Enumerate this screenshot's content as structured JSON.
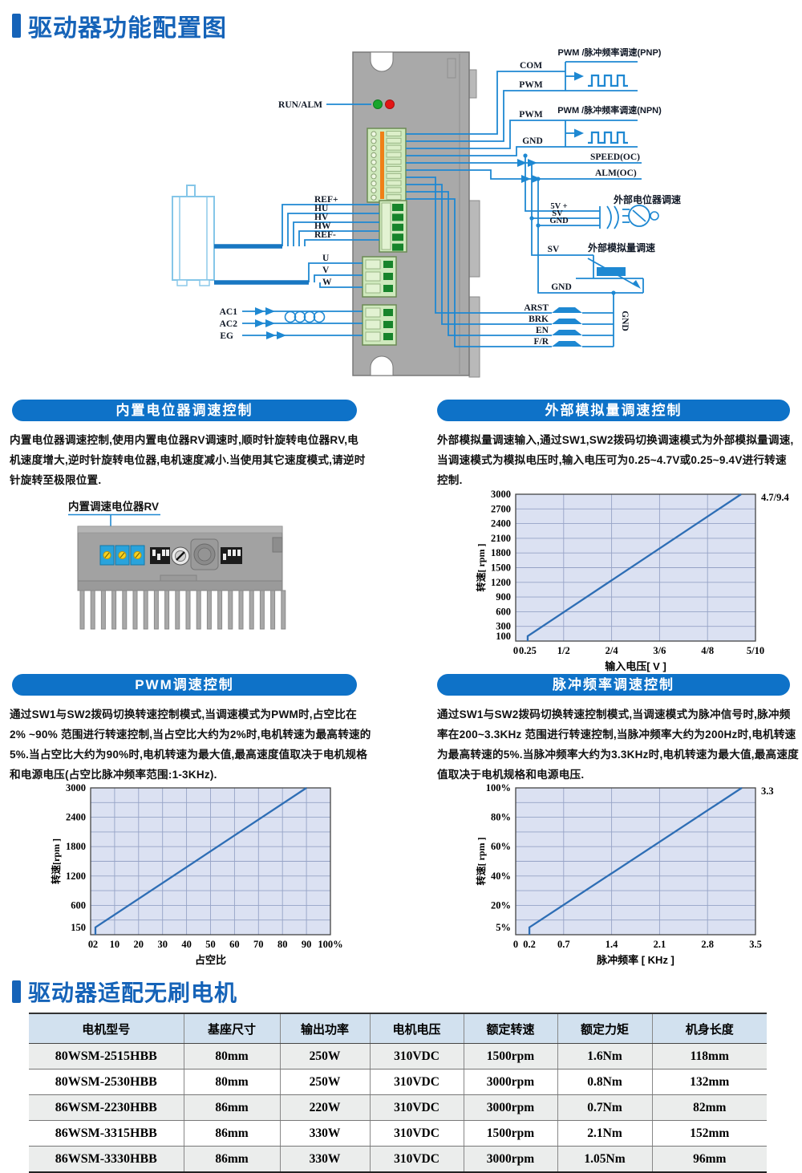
{
  "page": {
    "title1": "驱动器功能配置图",
    "title2": "驱动器适配无刷电机"
  },
  "colors": {
    "accent_blue": "#1563b8",
    "header_bar_blue": "#0e72c8",
    "wire_blue": "#1e88d2",
    "chart_line_blue": "#2e6eb5",
    "chart_plot_bg": "#dbe1f2",
    "table_header_bg": "#d2e1ef",
    "led_green": "#18a62c",
    "led_red": "#e31515"
  },
  "diagram": {
    "labels": {
      "run_alm": "RUN/ALM",
      "pnp_title": "PWM /脉冲频率调速(PNP)",
      "com": "COM",
      "pwm_pnp": "PWM",
      "npn_title": "PWM /脉冲频率调速(NPN)",
      "pwm_npn": "PWM",
      "gnd_npn": "GND",
      "speed_oc": "SPEED(OC)",
      "alm_oc": "ALM(OC)",
      "ext_pot_title": "外部电位器调速",
      "v5p": "5V +",
      "sv_pot": "SV",
      "gnd_pot": "GND",
      "sv_analog": "SV",
      "ext_analog_title": "外部模拟量调速",
      "gnd_analog": "GND",
      "arst": "ARST",
      "brk": "BRK",
      "en": "EN",
      "fr": "F/R",
      "gnd_rail": "GND",
      "ref_plus": "REF+",
      "hu": "HU",
      "hv": "HV",
      "hw": "HW",
      "ref_minus": "REF-",
      "u": "U",
      "v": "V",
      "w": "W",
      "ac1": "AC1",
      "ac2": "AC2",
      "eg": "EG"
    }
  },
  "device_view": {
    "label": "内置调速电位器RV"
  },
  "sections": [
    {
      "header": "内置电位器调速控制",
      "body": "内置电位器调速控制,使用内置电位器RV调速时,顺时针旋转电位器RV,电机速度增大,逆时针旋转电位器,电机速度减小.当使用其它速度模式,请逆时针旋转至极限位置."
    },
    {
      "header": "外部模拟量调速控制",
      "body": "外部模拟量调速输入,通过SW1,SW2拨码切换调速模式为外部模拟量调速,当调速模式为模拟电压时,输入电压可为0.25~4.7V或0.25~9.4V进行转速控制."
    },
    {
      "header": "PWM调速控制",
      "body": "通过SW1与SW2拨码切换转速控制模式,当调速模式为PWM时,占空比在2% ~90% 范围进行转速控制,当占空比大约为2%时,电机转速为最高转速的5%.当占空比大约为90%时,电机转速为最大值,最高速度值取决于电机规格和电源电压(占空比脉冲频率范围:1-3KHz)."
    },
    {
      "header": "脉冲频率调速控制",
      "body": "通过SW1与SW2拨码切换转速控制模式,当调速模式为脉冲信号时,脉冲频率在200~3.3KHz 范围进行转速控制,当脉冲频率大约为200Hz时,电机转速为最高转速的5%.当脉冲频率大约为3.3KHz时,电机转速为最大值,最高速度值取决于电机规格和电源电压."
    }
  ],
  "chart_data": [
    {
      "name": "analog-voltage-speed-curve",
      "type": "line",
      "xlabel": "输入电压[ V ]",
      "ylabel": "转速[ rpm ]",
      "xlim": [
        0,
        5
      ],
      "ylim": [
        0,
        3000
      ],
      "x_tick_pos": [
        0,
        0.25,
        1,
        2,
        3,
        4,
        5
      ],
      "x_tick_labels": [
        "0",
        "0.25",
        "1/2",
        "2/4",
        "3/6",
        "4/8",
        "5/10"
      ],
      "grid_x": [
        1,
        2,
        3,
        4
      ],
      "y_tick_pos": [
        100,
        300,
        600,
        900,
        1200,
        1500,
        1800,
        2100,
        2400,
        2700,
        3000
      ],
      "y_tick_labels": [
        "100",
        "300",
        "600",
        "900",
        "1200",
        "1500",
        "1800",
        "2100",
        "2400",
        "2700",
        "3000"
      ],
      "grid_y_step": 300,
      "annotation": "4.7/9.4",
      "series": [
        {
          "name": "转速",
          "points": [
            [
              0.25,
              0
            ],
            [
              0.25,
              100
            ],
            [
              4.7,
              3000
            ]
          ]
        }
      ]
    },
    {
      "name": "pwm-duty-speed-curve",
      "type": "line",
      "xlabel": "占空比",
      "ylabel": "转速[rpm ]",
      "xlim": [
        0,
        100
      ],
      "ylim": [
        0,
        3000
      ],
      "x_tick_pos": [
        0,
        2,
        10,
        20,
        30,
        40,
        50,
        60,
        70,
        80,
        90,
        100
      ],
      "x_tick_labels": [
        "0",
        "2",
        "10",
        "20",
        "30",
        "40",
        "50",
        "60",
        "70",
        "80",
        "90",
        "100%"
      ],
      "grid_x": [
        10,
        20,
        30,
        40,
        50,
        60,
        70,
        80,
        90
      ],
      "y_tick_pos": [
        150,
        600,
        1200,
        1800,
        2400,
        3000
      ],
      "y_tick_labels": [
        "150",
        "600",
        "1200",
        "1800",
        "2400",
        "3000"
      ],
      "grid_y_step": 300,
      "annotation": "",
      "series": [
        {
          "name": "转速",
          "points": [
            [
              2,
              0
            ],
            [
              2,
              150
            ],
            [
              90,
              3000
            ]
          ]
        }
      ]
    },
    {
      "name": "pulse-frequency-speed-curve",
      "type": "line",
      "xlabel": "脉冲频率 [ KHz ]",
      "ylabel": "转速[ rpm ]",
      "xlim": [
        0,
        3.5
      ],
      "ylim": [
        0,
        100
      ],
      "x_tick_pos": [
        0,
        0.2,
        0.7,
        1.4,
        2.1,
        2.8,
        3.5
      ],
      "x_tick_labels": [
        "0",
        "0.2",
        "0.7",
        "1.4",
        "2.1",
        "2.8",
        "3.5"
      ],
      "grid_x": [
        0.7,
        1.4,
        2.1,
        2.8
      ],
      "y_tick_pos": [
        5,
        20,
        40,
        60,
        80,
        100
      ],
      "y_tick_labels": [
        "5%",
        "20%",
        "40%",
        "60%",
        "80%",
        "100%"
      ],
      "grid_y_step": 10,
      "annotation": "3.3",
      "series": [
        {
          "name": "转速",
          "points": [
            [
              0.2,
              0
            ],
            [
              0.2,
              5
            ],
            [
              3.3,
              100
            ]
          ]
        }
      ]
    }
  ],
  "table": {
    "headers": [
      "电机型号",
      "基座尺寸",
      "输出功率",
      "电机电压",
      "额定转速",
      "额定力矩",
      "机身长度"
    ],
    "rows": [
      [
        "80WSM-2515HBB",
        "80mm",
        "250W",
        "310VDC",
        "1500rpm",
        "1.6Nm",
        "118mm"
      ],
      [
        "80WSM-2530HBB",
        "80mm",
        "250W",
        "310VDC",
        "3000rpm",
        "0.8Nm",
        "132mm"
      ],
      [
        "86WSM-2230HBB",
        "86mm",
        "220W",
        "310VDC",
        "3000rpm",
        "0.7Nm",
        "82mm"
      ],
      [
        "86WSM-3315HBB",
        "86mm",
        "330W",
        "310VDC",
        "1500rpm",
        "2.1Nm",
        "152mm"
      ],
      [
        "86WSM-3330HBB",
        "86mm",
        "330W",
        "310VDC",
        "3000rpm",
        "1.05Nm",
        "96mm"
      ]
    ]
  }
}
